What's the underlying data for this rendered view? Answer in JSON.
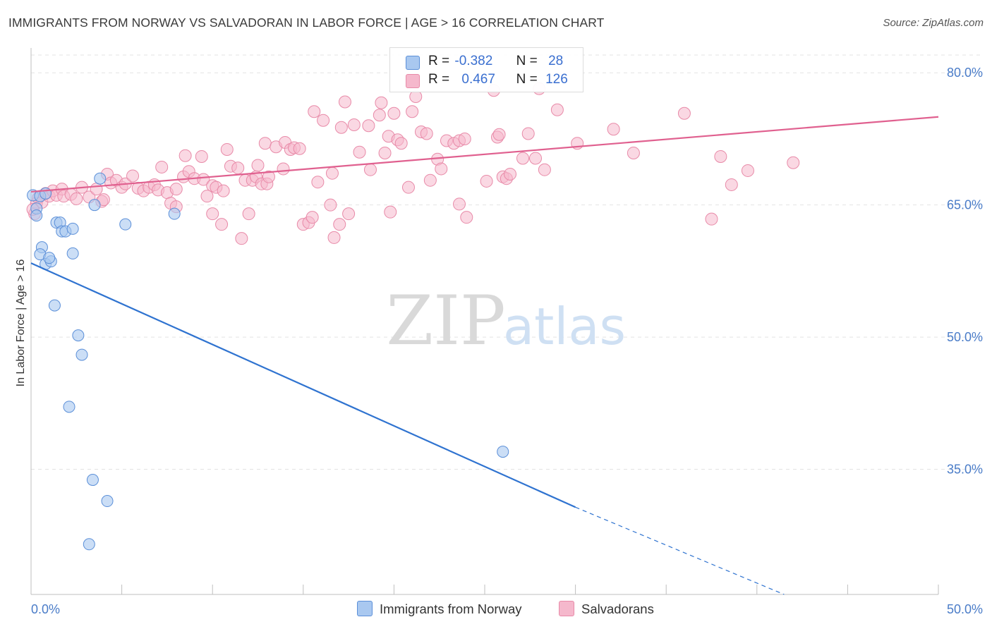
{
  "header": {
    "title": "IMMIGRANTS FROM NORWAY VS SALVADORAN IN LABOR FORCE | AGE > 16 CORRELATION CHART",
    "source": "Source: ZipAtlas.com"
  },
  "watermark": {
    "zip": "ZIP",
    "atlas": "atlas"
  },
  "legend_top": {
    "rows": [
      {
        "r_label": "R =",
        "r_value": "-0.382",
        "n_label": "N =",
        "n_value": "28"
      },
      {
        "r_label": "R =",
        "r_value": "0.467",
        "n_label": "N =",
        "n_value": "126"
      }
    ]
  },
  "legend_bottom": [
    "Immigrants from Norway",
    "Salvadorans"
  ],
  "colors": {
    "norway_fill": "#a9c8f0",
    "norway_stroke": "#5b8fd8",
    "norway_line": "#2f73d0",
    "salv_fill": "#f5b8cc",
    "salv_stroke": "#e88aa8",
    "salv_line": "#e0608f",
    "tick_label": "#4a7cc8",
    "grid": "#e3e3e3"
  },
  "chart_data": {
    "type": "scatter",
    "title": "IMMIGRANTS FROM NORWAY VS SALVADORAN IN LABOR FORCE | AGE > 16 CORRELATION CHART",
    "xlabel": "",
    "ylabel": "In Labor Force | Age > 16",
    "xlim": [
      0,
      50
    ],
    "ylim": [
      20.8,
      82.5
    ],
    "x_tick_labels": [
      {
        "value": 0,
        "label": "0.0%"
      },
      {
        "value": 50,
        "label": "50.0%"
      }
    ],
    "y_tick_labels": [
      {
        "value": 35,
        "label": "35.0%"
      },
      {
        "value": 50,
        "label": "50.0%"
      },
      {
        "value": 65,
        "label": "65.0%"
      },
      {
        "value": 80,
        "label": "80.0%"
      }
    ],
    "grid": true,
    "legend_position": "top-center",
    "series": [
      {
        "name": "Immigrants from Norway",
        "r": -0.382,
        "n": 28,
        "trend": {
          "x0": 0,
          "y0": 58.4,
          "x1": 30,
          "y1": 30.7,
          "dashed_to_x": 41.5,
          "dashed_to_y": 20.8
        },
        "points": [
          [
            0.1,
            66.1
          ],
          [
            0.3,
            64.6
          ],
          [
            0.3,
            63.8
          ],
          [
            0.5,
            66.0
          ],
          [
            0.8,
            66.3
          ],
          [
            0.6,
            60.2
          ],
          [
            0.5,
            59.4
          ],
          [
            0.8,
            58.3
          ],
          [
            1.1,
            58.6
          ],
          [
            1.0,
            59.0
          ],
          [
            1.4,
            63.0
          ],
          [
            1.6,
            63.0
          ],
          [
            1.7,
            62.0
          ],
          [
            1.9,
            62.0
          ],
          [
            2.3,
            62.3
          ],
          [
            2.3,
            59.5
          ],
          [
            1.3,
            53.6
          ],
          [
            2.6,
            50.2
          ],
          [
            2.8,
            48.0
          ],
          [
            2.1,
            42.1
          ],
          [
            3.4,
            33.8
          ],
          [
            4.2,
            31.4
          ],
          [
            3.2,
            26.5
          ],
          [
            3.5,
            65.0
          ],
          [
            3.8,
            68.0
          ],
          [
            5.2,
            62.8
          ],
          [
            7.9,
            64.0
          ],
          [
            26.0,
            37.0
          ]
        ]
      },
      {
        "name": "Salvadorans",
        "r": 0.467,
        "n": 126,
        "trend": {
          "x0": 0,
          "y0": 66.5,
          "x1": 50,
          "y1": 75.0
        },
        "points": [
          [
            0.2,
            64.0
          ],
          [
            0.3,
            65.2
          ],
          [
            0.4,
            65.8
          ],
          [
            0.6,
            65.3
          ],
          [
            0.8,
            66.3
          ],
          [
            1.0,
            66.0
          ],
          [
            1.2,
            66.6
          ],
          [
            1.4,
            66.1
          ],
          [
            1.7,
            66.8
          ],
          [
            1.8,
            66.0
          ],
          [
            2.2,
            66.2
          ],
          [
            2.5,
            65.7
          ],
          [
            2.8,
            67.0
          ],
          [
            3.2,
            65.9
          ],
          [
            3.6,
            66.8
          ],
          [
            3.9,
            65.4
          ],
          [
            4.0,
            65.6
          ],
          [
            4.2,
            68.5
          ],
          [
            4.4,
            67.5
          ],
          [
            4.7,
            67.8
          ],
          [
            5.0,
            67.0
          ],
          [
            5.2,
            67.4
          ],
          [
            5.6,
            68.3
          ],
          [
            5.9,
            66.9
          ],
          [
            6.2,
            66.6
          ],
          [
            6.5,
            67.0
          ],
          [
            6.8,
            67.3
          ],
          [
            7.0,
            66.7
          ],
          [
            7.2,
            69.3
          ],
          [
            7.5,
            66.4
          ],
          [
            7.7,
            65.2
          ],
          [
            8.0,
            66.8
          ],
          [
            8.0,
            64.8
          ],
          [
            8.4,
            68.2
          ],
          [
            8.5,
            70.6
          ],
          [
            8.7,
            68.8
          ],
          [
            9.0,
            68.0
          ],
          [
            9.4,
            70.5
          ],
          [
            9.5,
            67.9
          ],
          [
            9.7,
            66.0
          ],
          [
            10.0,
            67.2
          ],
          [
            10.2,
            67.0
          ],
          [
            10.0,
            64.0
          ],
          [
            10.5,
            62.8
          ],
          [
            10.6,
            66.6
          ],
          [
            10.8,
            71.3
          ],
          [
            11.0,
            69.4
          ],
          [
            11.4,
            69.2
          ],
          [
            11.6,
            61.2
          ],
          [
            11.8,
            67.8
          ],
          [
            12.0,
            64.0
          ],
          [
            12.2,
            67.8
          ],
          [
            12.4,
            68.2
          ],
          [
            12.5,
            69.5
          ],
          [
            12.7,
            67.4
          ],
          [
            12.9,
            72.0
          ],
          [
            13.0,
            67.4
          ],
          [
            13.1,
            68.2
          ],
          [
            13.5,
            71.6
          ],
          [
            13.9,
            69.1
          ],
          [
            14.0,
            72.1
          ],
          [
            14.3,
            71.3
          ],
          [
            14.5,
            71.5
          ],
          [
            14.8,
            71.4
          ],
          [
            15.0,
            62.8
          ],
          [
            15.3,
            63.0
          ],
          [
            15.5,
            63.6
          ],
          [
            15.6,
            75.6
          ],
          [
            15.8,
            67.6
          ],
          [
            16.1,
            74.6
          ],
          [
            16.5,
            65.0
          ],
          [
            16.6,
            68.6
          ],
          [
            16.7,
            61.3
          ],
          [
            17.0,
            62.8
          ],
          [
            17.1,
            73.8
          ],
          [
            17.3,
            76.7
          ],
          [
            17.5,
            64.0
          ],
          [
            17.8,
            74.1
          ],
          [
            18.1,
            71.0
          ],
          [
            18.6,
            74.0
          ],
          [
            18.7,
            69.0
          ],
          [
            19.2,
            75.2
          ],
          [
            19.3,
            76.6
          ],
          [
            19.5,
            70.9
          ],
          [
            19.7,
            72.8
          ],
          [
            19.8,
            64.2
          ],
          [
            20.0,
            75.4
          ],
          [
            20.2,
            72.4
          ],
          [
            20.4,
            72.0
          ],
          [
            20.8,
            67.0
          ],
          [
            21.0,
            75.6
          ],
          [
            21.2,
            77.3
          ],
          [
            21.5,
            73.3
          ],
          [
            21.8,
            73.1
          ],
          [
            22.0,
            67.8
          ],
          [
            22.4,
            70.2
          ],
          [
            22.6,
            69.1
          ],
          [
            22.9,
            72.3
          ],
          [
            23.3,
            72.0
          ],
          [
            23.6,
            72.3
          ],
          [
            23.6,
            65.1
          ],
          [
            23.9,
            72.5
          ],
          [
            24.0,
            63.6
          ],
          [
            25.1,
            67.7
          ],
          [
            25.5,
            78.0
          ],
          [
            25.7,
            72.7
          ],
          [
            25.8,
            73.0
          ],
          [
            26.0,
            68.2
          ],
          [
            26.2,
            68.0
          ],
          [
            26.4,
            68.5
          ],
          [
            27.1,
            70.3
          ],
          [
            27.4,
            73.1
          ],
          [
            27.8,
            70.3
          ],
          [
            28.0,
            78.2
          ],
          [
            28.3,
            69.0
          ],
          [
            29.0,
            75.8
          ],
          [
            30.1,
            72.0
          ],
          [
            32.1,
            73.6
          ],
          [
            33.2,
            70.9
          ],
          [
            36.0,
            75.4
          ],
          [
            37.5,
            63.4
          ],
          [
            38.0,
            70.5
          ],
          [
            38.6,
            67.3
          ],
          [
            39.5,
            68.9
          ],
          [
            42.0,
            69.8
          ],
          [
            0.1,
            64.5
          ]
        ]
      }
    ]
  }
}
